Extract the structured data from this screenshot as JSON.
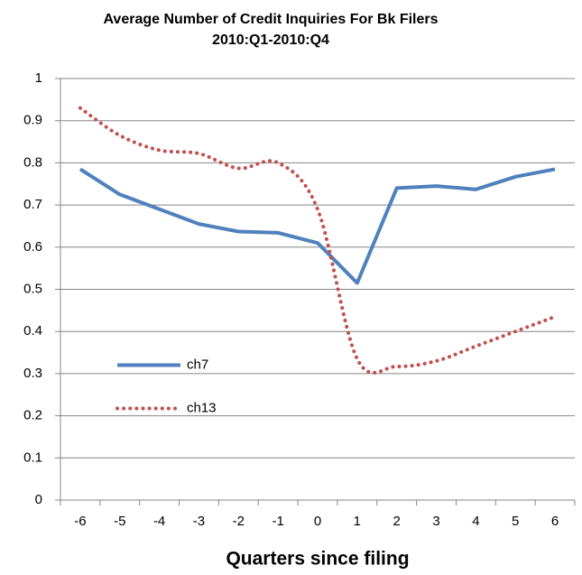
{
  "chart_data": {
    "type": "line",
    "title": "Average Number of Credit Inquiries For Bk Filers",
    "subtitle": "2010:Q1-2010:Q4",
    "x_label": "Quarters since filing",
    "categories": [
      "-6",
      "-5",
      "-4",
      "-3",
      "-2",
      "-1",
      "0",
      "1",
      "2",
      "3",
      "4",
      "5",
      "6"
    ],
    "series": [
      {
        "name": "ch7",
        "color": "#4f81bd",
        "style": "solid",
        "values": [
          0.785,
          0.725,
          0.69,
          0.655,
          0.637,
          0.634,
          0.61,
          0.515,
          0.74,
          0.745,
          0.737,
          0.767,
          0.785
        ]
      },
      {
        "name": "ch13",
        "color": "#c0504d",
        "style": "dotted",
        "values": [
          0.93,
          0.865,
          0.83,
          0.822,
          0.787,
          0.8,
          0.69,
          0.335,
          0.317,
          0.33,
          0.365,
          0.4,
          0.435
        ]
      }
    ],
    "ylim": [
      0,
      1
    ],
    "yticks": [
      0,
      0.1,
      0.2,
      0.3,
      0.4,
      0.5,
      0.6,
      0.7,
      0.8,
      0.9,
      1
    ],
    "grid": true,
    "legend": "center left"
  }
}
